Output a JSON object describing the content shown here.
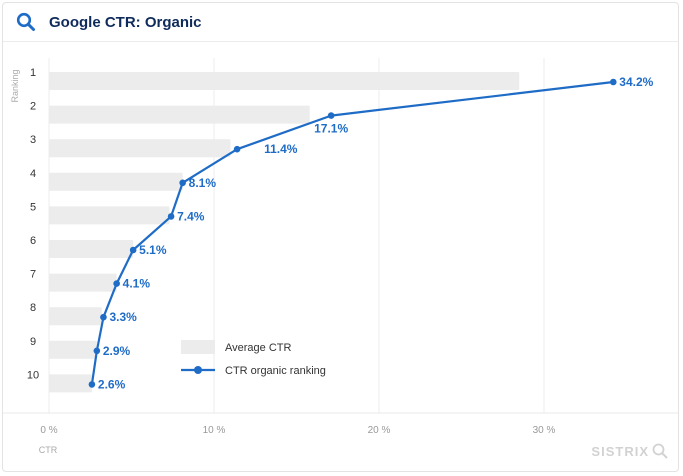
{
  "header": {
    "title": "Google CTR: Organic",
    "icon": "search-icon"
  },
  "brand": {
    "name": "SISTRIX"
  },
  "colors": {
    "line": "#1f6cc6",
    "bar": "#ececec",
    "title": "#0f2b5b",
    "axis_text": "#888888"
  },
  "chart_data": {
    "type": "bar",
    "orientation": "horizontal",
    "categories": [
      "1",
      "2",
      "3",
      "4",
      "5",
      "6",
      "7",
      "8",
      "9",
      "10"
    ],
    "ylabel": "Ranking",
    "xlabel": "CTR",
    "xlim": [
      0,
      35
    ],
    "x_ticks": [
      0,
      10,
      20,
      30
    ],
    "x_tick_labels": [
      "0 %",
      "10 %",
      "20 %",
      "30 %"
    ],
    "grid": "vertical",
    "legend_position": "bottom-center",
    "series": [
      {
        "name": "Average CTR",
        "type": "bar",
        "values": [
          28.5,
          15.8,
          11.0,
          8.1,
          7.3,
          5.1,
          4.1,
          3.2,
          2.9,
          2.6
        ]
      },
      {
        "name": "CTR organic ranking",
        "type": "line",
        "values": [
          34.2,
          17.1,
          11.4,
          8.1,
          7.4,
          5.1,
          4.1,
          3.3,
          2.9,
          2.6
        ],
        "labels": [
          "34.2%",
          "17.1%",
          "11.4%",
          "8.1%",
          "7.4%",
          "5.1%",
          "4.1%",
          "3.3%",
          "2.9%",
          "2.6%"
        ]
      }
    ]
  }
}
